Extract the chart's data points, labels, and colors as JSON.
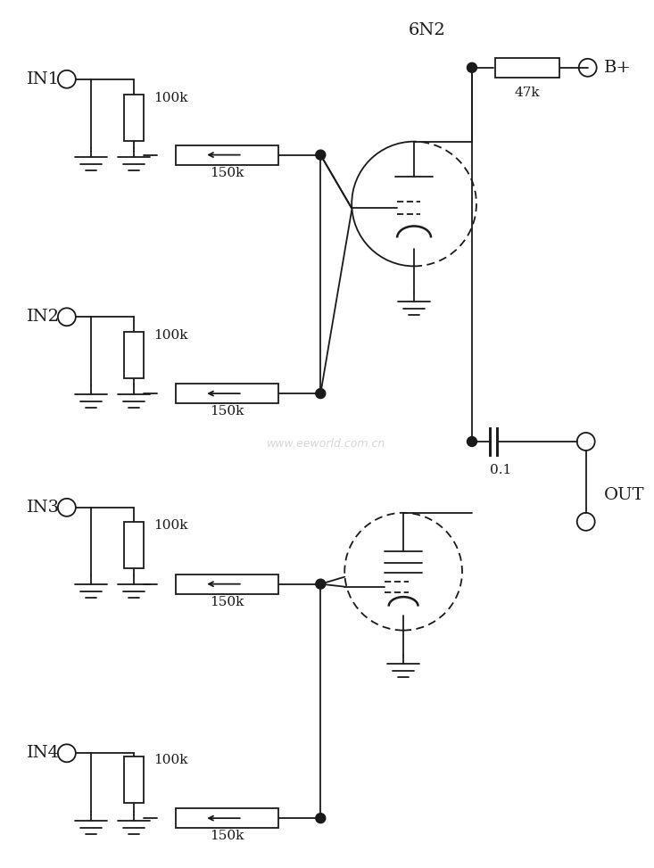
{
  "bg_color": "#ffffff",
  "line_color": "#1a1a1a",
  "lw": 1.3,
  "fig_w": 7.33,
  "fig_h": 9.73,
  "watermark": "www.eeworld.com.cn",
  "title": "6N2",
  "labels_IN": [
    "IN1",
    "IN2",
    "IN3",
    "IN4"
  ],
  "label_Bplus": "B+",
  "label_OUT": "OUT",
  "r_vals_100k": "100k",
  "r_vals_150k": "150k",
  "r_val_47k": "47k",
  "cap_val": "0.1"
}
